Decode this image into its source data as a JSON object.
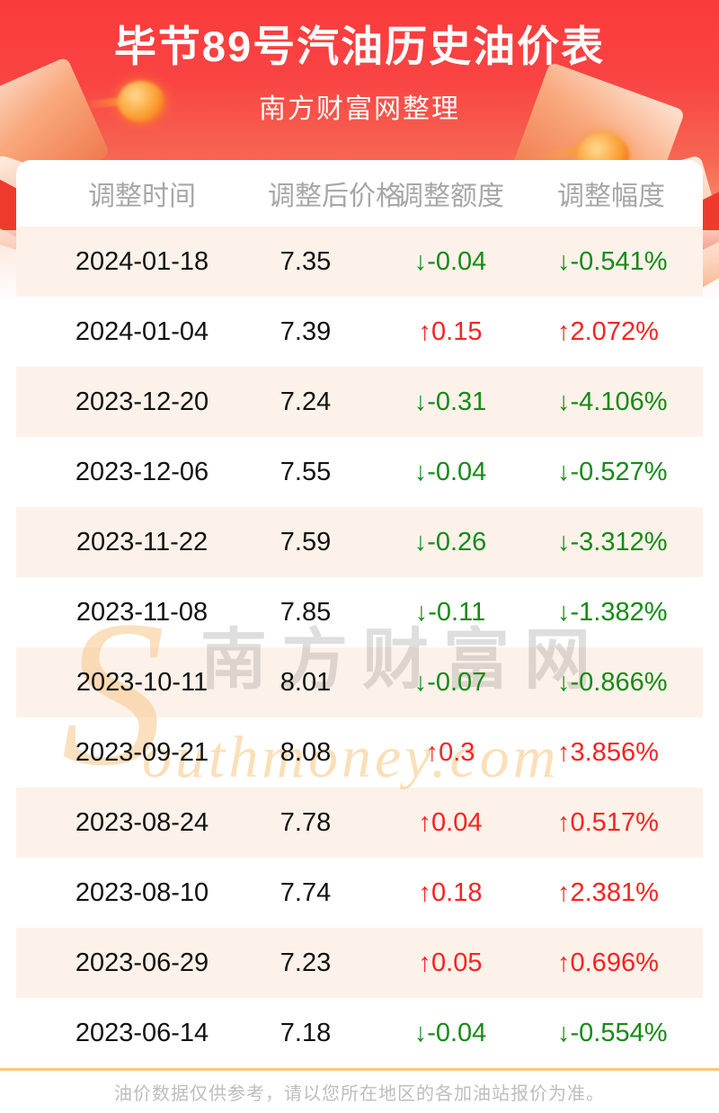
{
  "header": {
    "title": "毕节89号汽油历史油价表",
    "subtitle": "南方财富网整理"
  },
  "table": {
    "columns": [
      "调整时间",
      "调整后价格",
      "调整额度",
      "调整幅度"
    ],
    "rows": [
      {
        "date": "2024-01-18",
        "price": "7.35",
        "change": "↓-0.04",
        "percent": "↓-0.541%",
        "direction": "down"
      },
      {
        "date": "2024-01-04",
        "price": "7.39",
        "change": "↑0.15",
        "percent": "↑2.072%",
        "direction": "up"
      },
      {
        "date": "2023-12-20",
        "price": "7.24",
        "change": "↓-0.31",
        "percent": "↓-4.106%",
        "direction": "down"
      },
      {
        "date": "2023-12-06",
        "price": "7.55",
        "change": "↓-0.04",
        "percent": "↓-0.527%",
        "direction": "down"
      },
      {
        "date": "2023-11-22",
        "price": "7.59",
        "change": "↓-0.26",
        "percent": "↓-3.312%",
        "direction": "down"
      },
      {
        "date": "2023-11-08",
        "price": "7.85",
        "change": "↓-0.11",
        "percent": "↓-1.382%",
        "direction": "down"
      },
      {
        "date": "2023-10-11",
        "price": "8.01",
        "change": "↓-0.07",
        "percent": "↓-0.866%",
        "direction": "down"
      },
      {
        "date": "2023-09-21",
        "price": "8.08",
        "change": "↑0.3",
        "percent": "↑3.856%",
        "direction": "up"
      },
      {
        "date": "2023-08-24",
        "price": "7.78",
        "change": "↑0.04",
        "percent": "↑0.517%",
        "direction": "up"
      },
      {
        "date": "2023-08-10",
        "price": "7.74",
        "change": "↑0.18",
        "percent": "↑2.381%",
        "direction": "up"
      },
      {
        "date": "2023-06-29",
        "price": "7.23",
        "change": "↑0.05",
        "percent": "↑0.696%",
        "direction": "up"
      },
      {
        "date": "2023-06-14",
        "price": "7.18",
        "change": "↓-0.04",
        "percent": "↓-0.554%",
        "direction": "down"
      }
    ]
  },
  "watermark": {
    "initial": "S",
    "cn": "南方财富网",
    "en": "outhmoney.com"
  },
  "footer": {
    "disclaimer": "油价数据仅供参考，请以您所在地区的各加油站报价为准。"
  },
  "colors": {
    "up_red": "#fb2222",
    "down_green": "#168a16",
    "hero_top": "#fa3a3a",
    "hero_bottom": "#f79b7d",
    "row_shade": "#fdf2e9",
    "footer_rule": "#f6c782"
  }
}
